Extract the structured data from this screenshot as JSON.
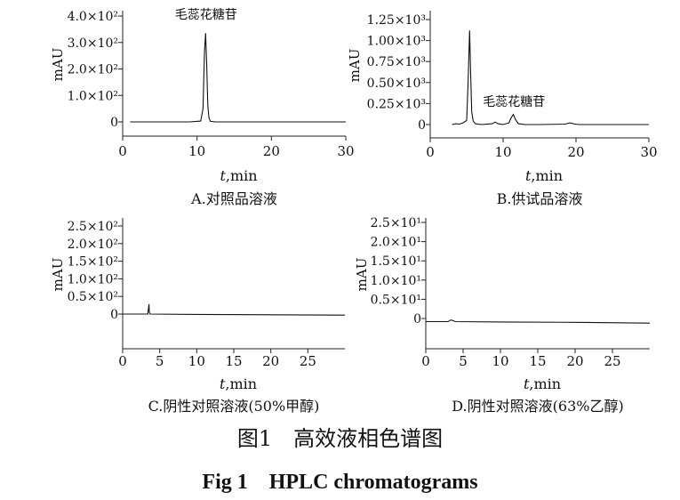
{
  "figure": {
    "caption_cn": "图1　高效液相色谱图",
    "caption_en": "Fig 1　HPLC chromatograms"
  },
  "chart_data": [
    {
      "id": "A",
      "type": "line",
      "subtitle": "A.对照品溶液",
      "xlabel_var": "t",
      "xlabel_unit": ",min",
      "ylabel": "mAU",
      "xlim": [
        0,
        30
      ],
      "ylim": [
        -0.5,
        4.1
      ],
      "xticks": [
        0,
        10,
        20,
        30
      ],
      "xtick_labels": [
        "0",
        "10",
        "20",
        "30"
      ],
      "yticks": [
        0,
        1,
        2,
        3,
        4
      ],
      "ytick_labels": [
        "0",
        "1.0×10²",
        "2.0×10²",
        "3.0×10²",
        "4.0×10²"
      ],
      "series": [
        {
          "x": [
            1,
            5,
            9,
            10.5,
            10.8,
            11.0,
            11.15,
            11.3,
            11.45,
            11.6,
            11.8,
            12.5,
            15,
            20,
            25,
            30
          ],
          "y": [
            0,
            0,
            0,
            0.03,
            0.5,
            2.6,
            3.35,
            2.2,
            0.6,
            0.15,
            0.02,
            0,
            0,
            0,
            0,
            0
          ]
        }
      ],
      "annotations": [
        {
          "text": "毛蕊花糖苷",
          "x": 11.2,
          "y": 3.9
        }
      ]
    },
    {
      "id": "B",
      "type": "line",
      "subtitle": "B.供试品溶液",
      "xlabel_var": "t",
      "xlabel_unit": ",min",
      "ylabel": "mAU",
      "xlim": [
        0,
        30
      ],
      "ylim": [
        -0.12,
        1.27
      ],
      "xticks": [
        0,
        10,
        20,
        30
      ],
      "xtick_labels": [
        "0",
        "10",
        "20",
        "30"
      ],
      "yticks": [
        0,
        0.25,
        0.5,
        0.75,
        1.0,
        1.25
      ],
      "ytick_labels": [
        "0",
        "0.25×10³",
        "0.50×10³",
        "0.75×10³",
        "1.00×10³",
        "1.25×10³"
      ],
      "series": [
        {
          "x": [
            3,
            3.5,
            4,
            4.5,
            5.0,
            5.2,
            5.4,
            5.55,
            5.7,
            5.9,
            6.2,
            7,
            8.5,
            8.9,
            9.3,
            10,
            10.8,
            11.1,
            11.4,
            11.7,
            12.1,
            13,
            15,
            18.5,
            19.2,
            19.8,
            20.5,
            25,
            30
          ],
          "y": [
            0,
            0.01,
            0.005,
            0.02,
            0.05,
            0.5,
            1.12,
            0.6,
            0.15,
            0.04,
            0.01,
            0,
            0.01,
            0.03,
            0.01,
            0,
            0.02,
            0.08,
            0.12,
            0.06,
            0.01,
            0,
            0,
            0.005,
            0.02,
            0.005,
            0,
            0,
            0
          ]
        }
      ],
      "annotations": [
        {
          "text": "毛蕊花糖苷",
          "x": 11.5,
          "y": 0.22
        }
      ]
    },
    {
      "id": "C",
      "type": "line",
      "subtitle": "C.阴性对照溶液(50%甲醇)",
      "xlabel_var": "t",
      "xlabel_unit": ",min",
      "ylabel": "mAU",
      "xlim": [
        0,
        30
      ],
      "ylim": [
        -0.9,
        2.7
      ],
      "xticks": [
        0,
        5,
        10,
        15,
        20,
        25
      ],
      "xtick_labels": [
        "0",
        "5",
        "10",
        "15",
        "20",
        "25"
      ],
      "yticks": [
        0,
        0.5,
        1.0,
        1.5,
        2.0,
        2.5
      ],
      "ytick_labels": [
        "0",
        "0.5×10²",
        "1.0×10²",
        "1.5×10²",
        "2.0×10²",
        "2.5×10²"
      ],
      "series": [
        {
          "x": [
            0,
            3.4,
            3.5,
            3.55,
            3.6,
            3.7,
            10,
            20,
            30
          ],
          "y": [
            0,
            0,
            0.2,
            0.28,
            0.05,
            0,
            -0.01,
            -0.02,
            -0.03
          ]
        }
      ],
      "annotations": []
    },
    {
      "id": "D",
      "type": "line",
      "subtitle": "D.阴性对照溶液(63%乙醇)",
      "xlabel_var": "t",
      "xlabel_unit": ",min",
      "ylabel": "mAU",
      "xlim": [
        0,
        30
      ],
      "ylim": [
        -0.05,
        2.6
      ],
      "xticks": [
        0,
        5,
        10,
        15,
        20,
        25
      ],
      "xtick_labels": [
        "0",
        "5",
        "10",
        "15",
        "20",
        "25"
      ],
      "yticks": [
        0,
        0.5,
        1.0,
        1.5,
        2.0,
        2.5
      ],
      "ytick_labels": [
        "0",
        "0.5×10¹",
        "1.0×10¹",
        "1.5×10¹",
        "2.0×10¹",
        "2.5×10¹"
      ],
      "series": [
        {
          "x": [
            0,
            3.0,
            3.2,
            3.4,
            3.7,
            4.0,
            10,
            20,
            30
          ],
          "y": [
            -0.08,
            -0.08,
            -0.05,
            -0.04,
            -0.06,
            -0.08,
            -0.09,
            -0.1,
            -0.12
          ]
        }
      ],
      "annotations": []
    }
  ]
}
